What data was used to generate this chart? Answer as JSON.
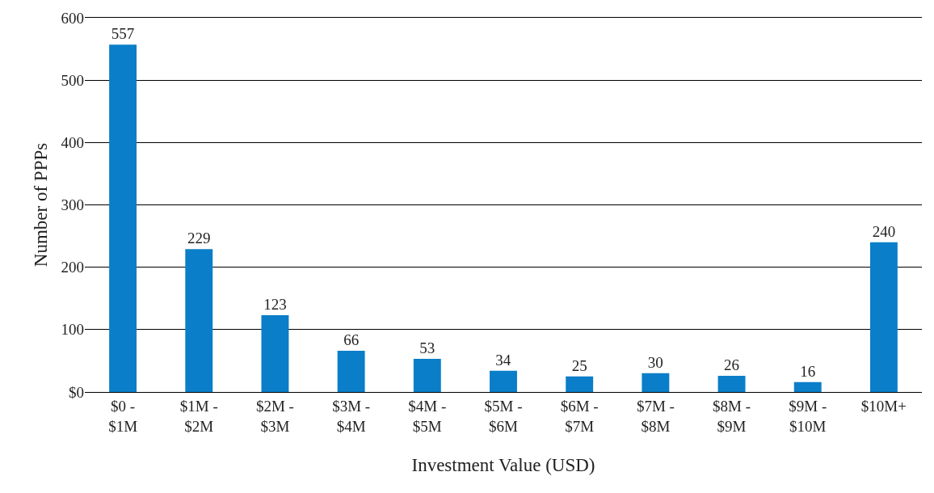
{
  "chart_data": {
    "type": "bar",
    "xlabel": "Investment Value (USD)",
    "ylabel": "Number of PPPs",
    "categories": [
      "$0 -\n$1M",
      "$1M -\n$2M",
      "$2M -\n$3M",
      "$3M -\n$4M",
      "$4M -\n$5M",
      "$5M -\n$6M",
      "$6M -\n$7M",
      "$7M -\n$8M",
      "$8M -\n$9M",
      "$9M -\n$10M",
      "$10M+"
    ],
    "values": [
      557,
      229,
      123,
      66,
      53,
      34,
      25,
      30,
      26,
      16,
      240
    ],
    "color": "#0a7ec8",
    "ylim": [
      0,
      600
    ],
    "yticks": [
      {
        "value": 0,
        "label": "$0"
      },
      100,
      200,
      300,
      400,
      500,
      600
    ],
    "grid": "y",
    "data_labels": true
  }
}
